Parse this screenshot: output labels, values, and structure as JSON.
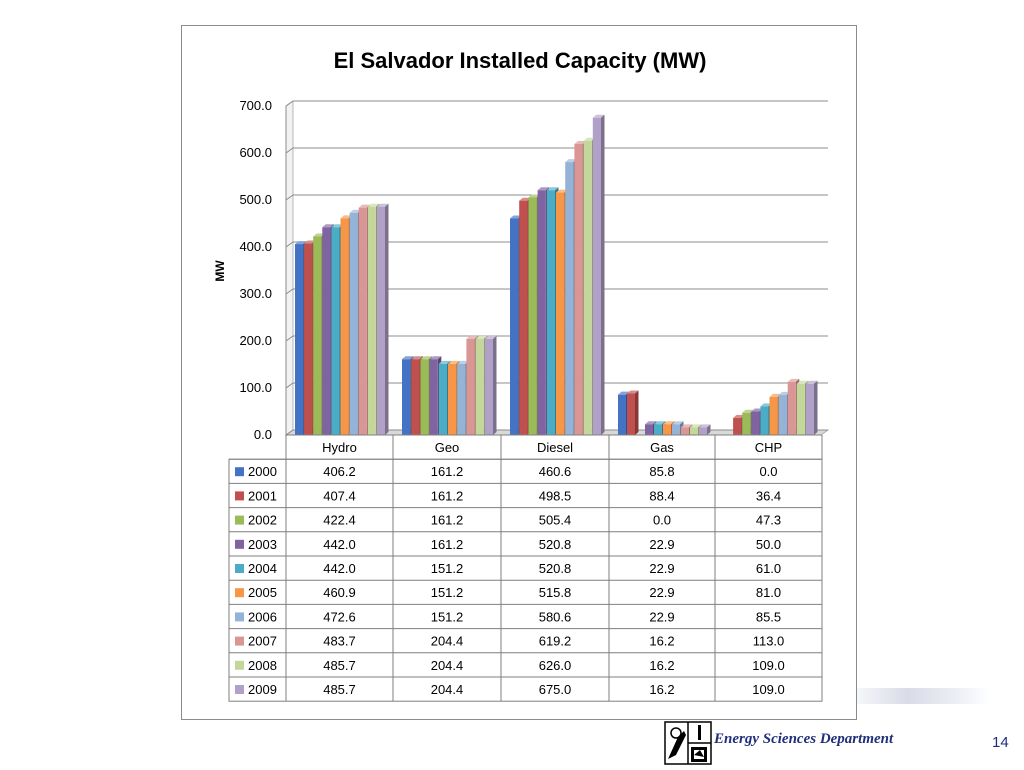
{
  "slide": {
    "department": "Energy Sciences Department",
    "page_number": "14"
  },
  "chart_data": {
    "type": "bar",
    "title": "El Salvador Installed Capacity  (MW)",
    "ylabel": "MW",
    "xlabel": "",
    "ylim": [
      0,
      700
    ],
    "yticks": [
      "0.0",
      "100.0",
      "200.0",
      "300.0",
      "400.0",
      "500.0",
      "600.0",
      "700.0"
    ],
    "categories": [
      "Hydro",
      "Geo",
      "Diesel",
      "Gas",
      "CHP"
    ],
    "grid": true,
    "legend": "data-table",
    "series": [
      {
        "name": "2000",
        "color": "#4472c4",
        "values": [
          406.2,
          161.2,
          460.6,
          85.8,
          0.0
        ],
        "labels": [
          "406.2",
          "161.2",
          "460.6",
          "85.8",
          "0.0"
        ]
      },
      {
        "name": "2001",
        "color": "#c0504d",
        "values": [
          407.4,
          161.2,
          498.5,
          88.4,
          36.4
        ],
        "labels": [
          "407.4",
          "161.2",
          "498.5",
          "88.4",
          "36.4"
        ]
      },
      {
        "name": "2002",
        "color": "#9bbb59",
        "values": [
          422.4,
          161.2,
          505.4,
          0.0,
          47.3
        ],
        "labels": [
          "422.4",
          "161.2",
          "505.4",
          "0.0",
          "47.3"
        ]
      },
      {
        "name": "2003",
        "color": "#8064a2",
        "values": [
          442.0,
          161.2,
          520.8,
          22.9,
          50.0
        ],
        "labels": [
          "442.0",
          "161.2",
          "520.8",
          "22.9",
          "50.0"
        ]
      },
      {
        "name": "2004",
        "color": "#4bacc6",
        "values": [
          442.0,
          151.2,
          520.8,
          22.9,
          61.0
        ],
        "labels": [
          "442.0",
          "151.2",
          "520.8",
          "22.9",
          "61.0"
        ]
      },
      {
        "name": "2005",
        "color": "#f79646",
        "values": [
          460.9,
          151.2,
          515.8,
          22.9,
          81.0
        ],
        "labels": [
          "460.9",
          "151.2",
          "515.8",
          "22.9",
          "81.0"
        ]
      },
      {
        "name": "2006",
        "color": "#95b3d7",
        "values": [
          472.6,
          151.2,
          580.6,
          22.9,
          85.5
        ],
        "labels": [
          "472.6",
          "151.2",
          "580.6",
          "22.9",
          "85.5"
        ]
      },
      {
        "name": "2007",
        "color": "#da9694",
        "values": [
          483.7,
          204.4,
          619.2,
          16.2,
          113.0
        ],
        "labels": [
          "483.7",
          "204.4",
          "619.2",
          "16.2",
          "113.0"
        ]
      },
      {
        "name": "2008",
        "color": "#c4d79b",
        "values": [
          485.7,
          204.4,
          626.0,
          16.2,
          109.0
        ],
        "labels": [
          "485.7",
          "204.4",
          "626.0",
          "16.2",
          "109.0"
        ]
      },
      {
        "name": "2009",
        "color": "#b1a0c7",
        "values": [
          485.7,
          204.4,
          675.0,
          16.2,
          109.0
        ],
        "labels": [
          "485.7",
          "204.4",
          "675.0",
          "16.2",
          "109.0"
        ]
      }
    ]
  }
}
